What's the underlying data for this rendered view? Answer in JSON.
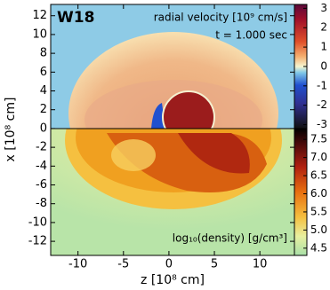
{
  "chart_data": {
    "type": "image",
    "label": "W18",
    "xlabel": "z [10⁸ cm]",
    "ylabel": "x [10⁸ cm]",
    "xlim": [
      -13,
      13.8
    ],
    "xticks": [
      -10,
      -5,
      0,
      5,
      10
    ],
    "ylim": [
      -13.5,
      13.2
    ],
    "yticks": [
      12,
      10,
      8,
      6,
      4,
      2,
      0,
      -2,
      -4,
      -6,
      -8,
      -10,
      -12
    ],
    "panels": [
      {
        "title": "radial velocity [10⁹ cm/s]",
        "annotation": "t = 1.000 sec",
        "clim": [
          -3.2,
          3.2
        ],
        "cticks": [
          3,
          2,
          1,
          0,
          -1,
          -2,
          -3
        ]
      },
      {
        "title": "log₁₀(density) [g/cm³]",
        "clim": [
          4.3,
          7.8
        ],
        "cticks": [
          7.5,
          {
            "value": 7,
            "label": "7.0"
          },
          6.5,
          {
            "value": 6,
            "label": "6.0"
          },
          5.5,
          {
            "value": 5,
            "label": "5.0"
          },
          4.5
        ]
      }
    ]
  }
}
